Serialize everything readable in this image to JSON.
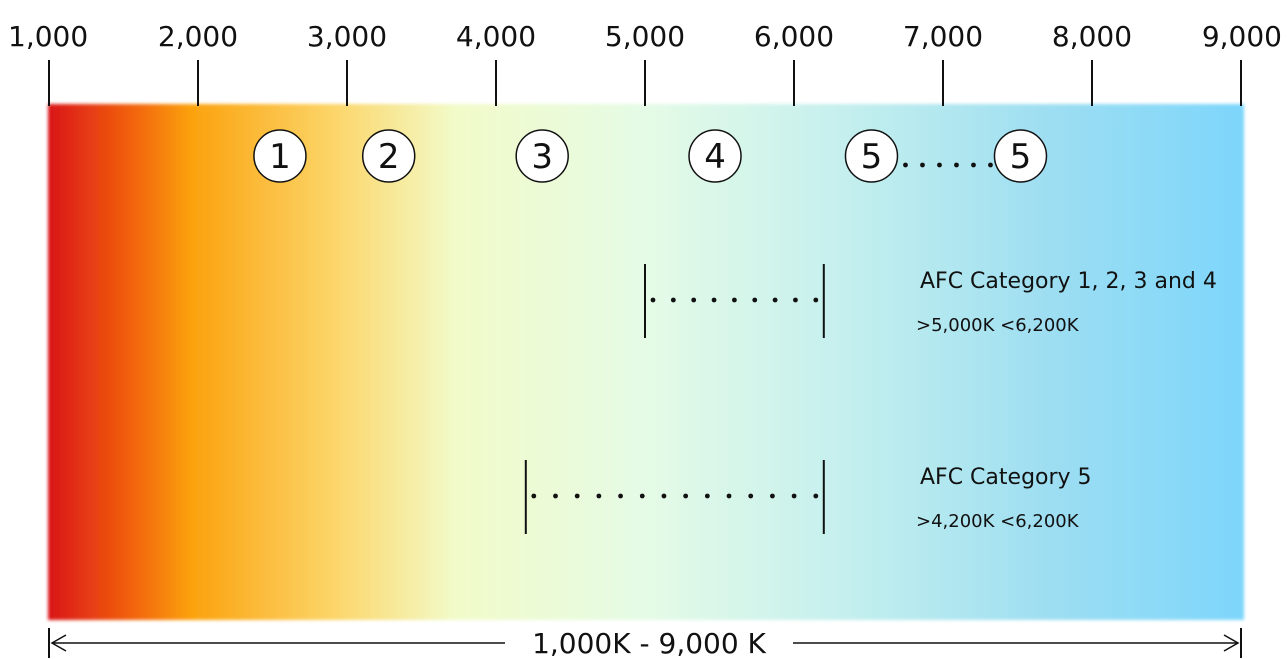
{
  "scale": {
    "ticks": [
      {
        "value": 1000,
        "label": "1,000"
      },
      {
        "value": 2000,
        "label": "2,000"
      },
      {
        "value": 3000,
        "label": "3,000"
      },
      {
        "value": 4000,
        "label": "4,000"
      },
      {
        "value": 5000,
        "label": "5,000"
      },
      {
        "value": 6000,
        "label": "6,000"
      },
      {
        "value": 7000,
        "label": "7,000"
      },
      {
        "value": 8000,
        "label": "8,000"
      },
      {
        "value": 9000,
        "label": "9,000"
      }
    ],
    "min": 1000,
    "max": 9000
  },
  "gradient_colors": [
    "#d9151a",
    "#f2620c",
    "#fba20e",
    "#fcd66a",
    "#f2fbc9",
    "#e5fbe6",
    "#c6f0ee",
    "#9ddef2",
    "#7dd6fb"
  ],
  "badges": [
    {
      "label": "1",
      "value": 2550
    },
    {
      "label": "2",
      "value": 3280
    },
    {
      "label": "3",
      "value": 4310
    },
    {
      "label": "4",
      "value": 5470
    },
    {
      "label": "5",
      "value": 6520
    },
    {
      "label": "5",
      "value": 7520
    }
  ],
  "badge_connector": {
    "from": 6520,
    "to": 7520
  },
  "categories": [
    {
      "title": "AFC Category 1, 2, 3 and 4",
      "range_text": ">5,000K  <6,200K",
      "start": 5000,
      "end": 6200
    },
    {
      "title": "AFC Category 5",
      "range_text": ">4,200K  <6,200K",
      "start": 4200,
      "end": 6200
    }
  ],
  "span_label": "1,000K - 9,000 K"
}
